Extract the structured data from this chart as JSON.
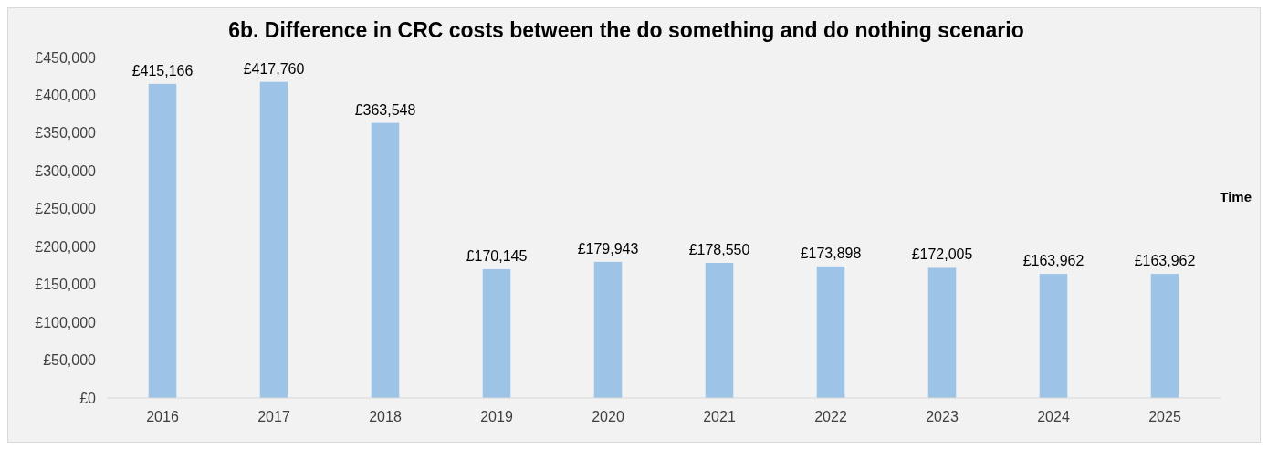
{
  "chart_data": {
    "type": "bar",
    "title": "6b. Difference in CRC costs between the do something and do nothing scenario",
    "xlabel": "Time",
    "categories": [
      "2016",
      "2017",
      "2018",
      "2019",
      "2020",
      "2021",
      "2022",
      "2023",
      "2024",
      "2025"
    ],
    "values": [
      415166,
      417760,
      363548,
      170145,
      179943,
      178550,
      173898,
      172005,
      163962,
      163962
    ],
    "value_labels": [
      "£415,166",
      "£417,760",
      "£363,548",
      "£170,145",
      "£179,943",
      "£178,550",
      "£173,898",
      "£172,005",
      "£163,962",
      "£163,962"
    ],
    "color": "#9dc3e6",
    "ylim": [
      0,
      450000
    ],
    "yticks": [
      {
        "value": 0,
        "label": "£0"
      },
      {
        "value": 50000,
        "label": "£50,000"
      },
      {
        "value": 100000,
        "label": "£100,000"
      },
      {
        "value": 150000,
        "label": "£150,000"
      },
      {
        "value": 200000,
        "label": "£200,000"
      },
      {
        "value": 250000,
        "label": "£250,000"
      },
      {
        "value": 300000,
        "label": "£300,000"
      },
      {
        "value": 350000,
        "label": "£350,000"
      },
      {
        "value": 400000,
        "label": "£400,000"
      },
      {
        "value": 450000,
        "label": "£450,000"
      }
    ],
    "grid": false
  }
}
